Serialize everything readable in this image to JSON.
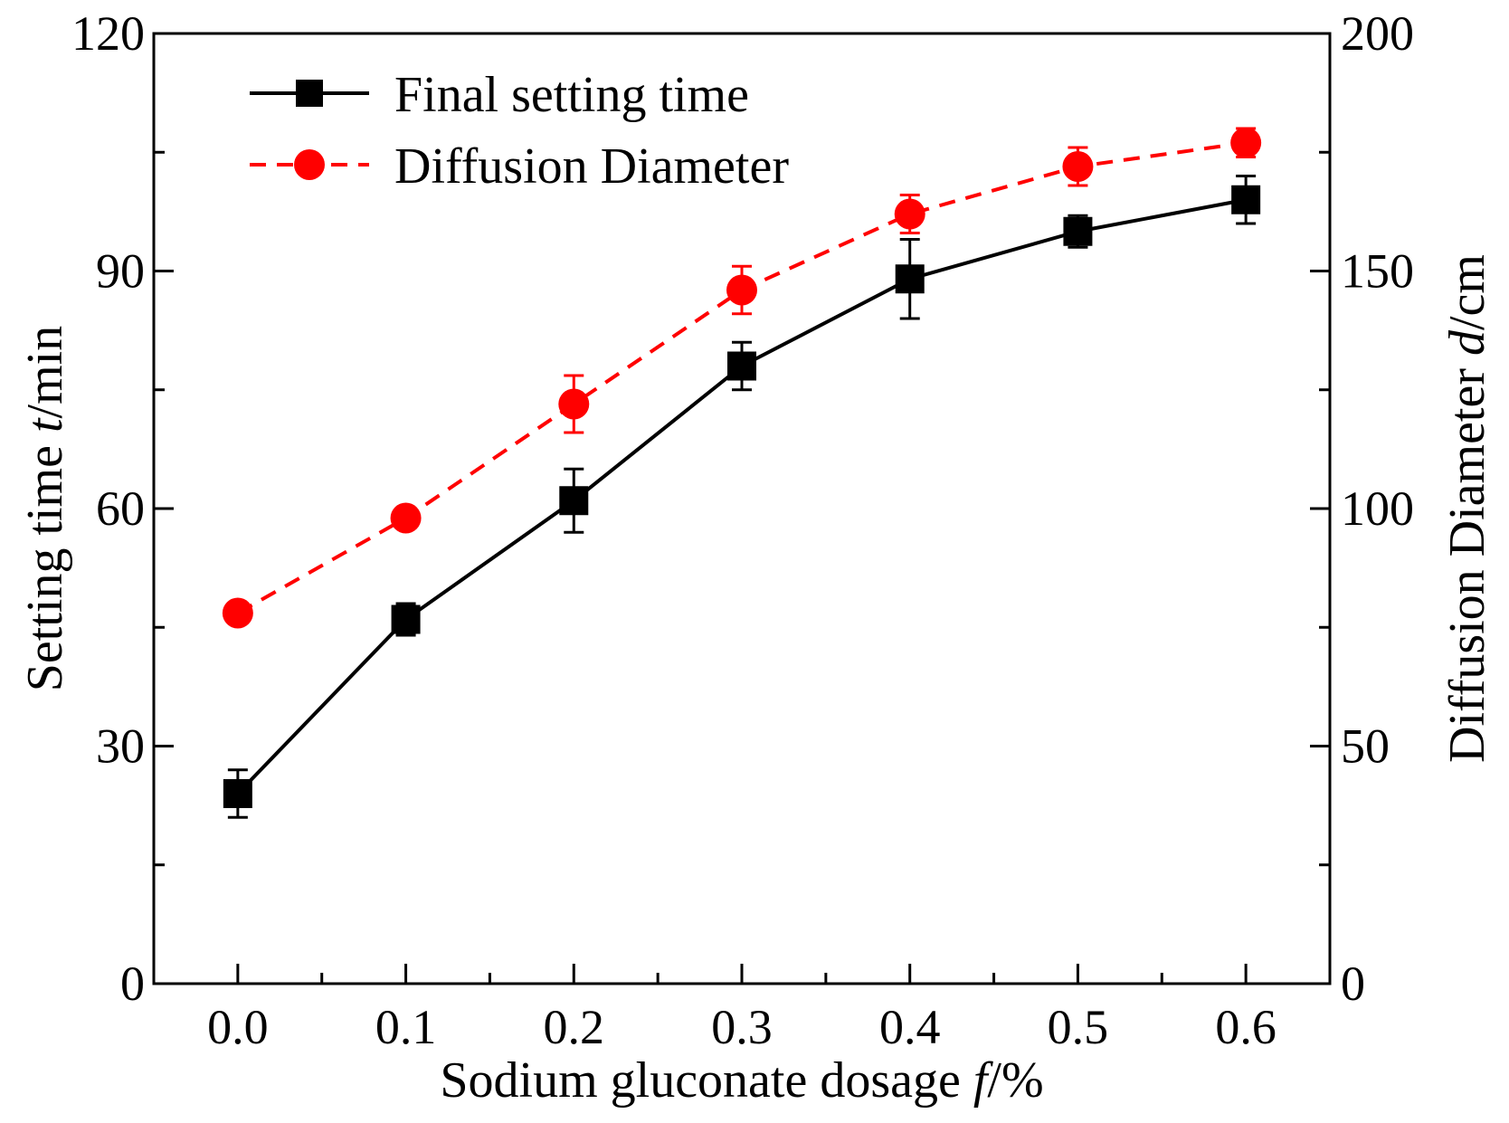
{
  "chart_data": {
    "type": "line",
    "x": [
      0.0,
      0.1,
      0.2,
      0.3,
      0.4,
      0.5,
      0.6
    ],
    "x_tick_labels": [
      "0.0",
      "0.1",
      "0.2",
      "0.3",
      "0.4",
      "0.5",
      "0.6"
    ],
    "xlim": [
      -0.05,
      0.65
    ],
    "xlabel": {
      "prefix": "Sodium gluconate dosage ",
      "variable": "f",
      "suffix": "/%"
    },
    "y_left": {
      "label": {
        "prefix": "Setting time ",
        "variable": "t",
        "suffix": "/min"
      },
      "lim": [
        0,
        120
      ],
      "ticks": [
        0,
        30,
        60,
        90,
        120
      ],
      "tick_labels": [
        "0",
        "30",
        "60",
        "90",
        "120"
      ],
      "minor_ticks": [
        15,
        45,
        75,
        105
      ]
    },
    "y_right": {
      "label": {
        "prefix": "Diffusion Diameter ",
        "variable": "d",
        "suffix": "/cm"
      },
      "lim": [
        0,
        200
      ],
      "ticks": [
        0,
        50,
        100,
        150,
        200
      ],
      "tick_labels": [
        "0",
        "50",
        "100",
        "150",
        "200"
      ],
      "minor_ticks": [
        25,
        75,
        125,
        175
      ]
    },
    "series": [
      {
        "name": "Final setting time",
        "axis": "left",
        "color": "#000000",
        "line_style": "solid",
        "marker": "square",
        "values": [
          24,
          46,
          61,
          78,
          89,
          95,
          99
        ],
        "errors": [
          3,
          2,
          4,
          3,
          5,
          2,
          3
        ]
      },
      {
        "name": "Diffusion Diameter",
        "axis": "right",
        "color": "#ff0000",
        "line_style": "dashed",
        "marker": "circle",
        "values": [
          78,
          98,
          122,
          146,
          162,
          172,
          177
        ],
        "errors": [
          2,
          2,
          6,
          5,
          4,
          4,
          3
        ]
      }
    ],
    "legend": {
      "position": "top-left"
    }
  }
}
